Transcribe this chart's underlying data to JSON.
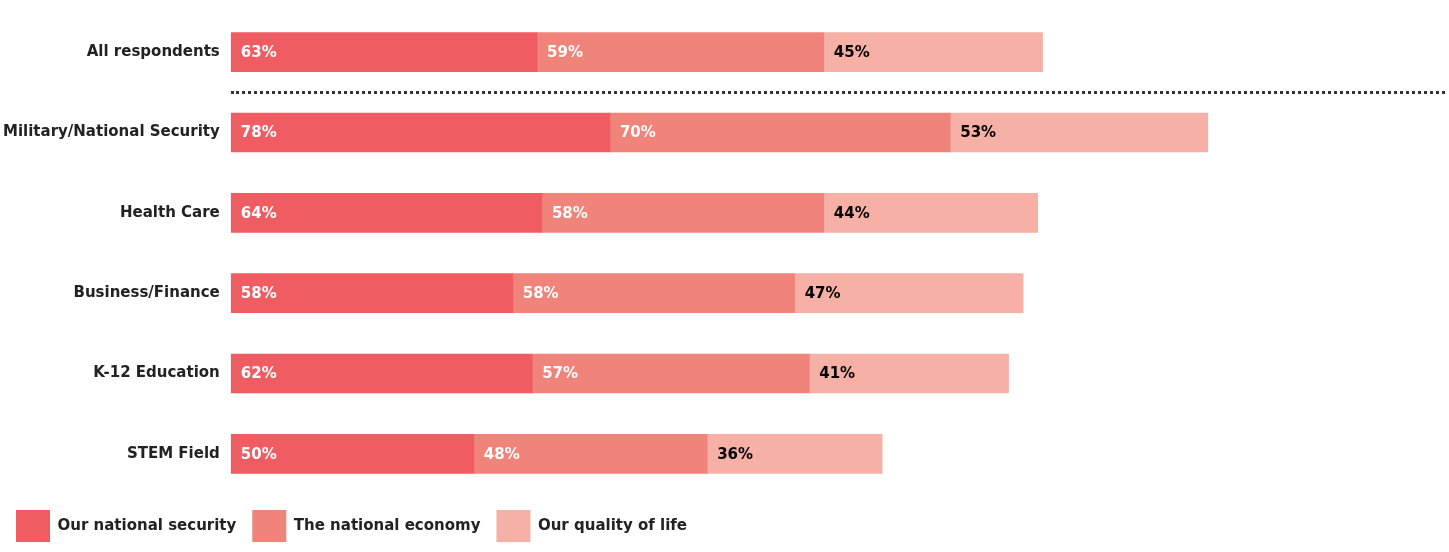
{
  "chart_data": {
    "type": "bar",
    "orientation": "horizontal",
    "stacked": true,
    "legend": "bottom left",
    "grid": false,
    "tick_labels": "y",
    "categories": [
      "All respondents",
      "Military/National Security",
      "Health Care",
      "Business/Finance",
      "K-12 Education",
      "STEM Field"
    ],
    "series": [
      {
        "name": "Our national security",
        "color": "#ef5d63",
        "values": [
          63,
          78,
          64,
          58,
          62,
          50
        ],
        "value_labels": [
          "63%",
          "78%",
          "64%",
          "58%",
          "62%",
          "50%"
        ]
      },
      {
        "name": "The national economy",
        "color": "#f0837a",
        "values": [
          59,
          70,
          58,
          58,
          57,
          48
        ],
        "value_labels": [
          "59%",
          "70%",
          "58%",
          "58%",
          "57%",
          "48%"
        ]
      },
      {
        "name": "Our quality of life",
        "color": "#f6b0a6",
        "values": [
          45,
          53,
          44,
          47,
          41,
          36
        ],
        "value_labels": [
          "45%",
          "53%",
          "44%",
          "47%",
          "41%",
          "36%"
        ]
      }
    ]
  }
}
